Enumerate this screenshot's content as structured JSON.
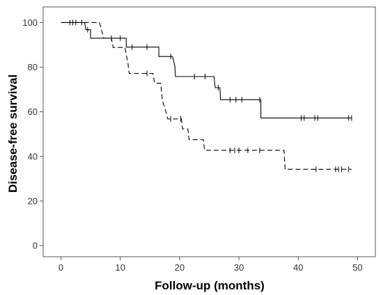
{
  "chart_data": {
    "type": "line",
    "step": true,
    "xlabel": "Follow-up (months)",
    "ylabel": "Disease-free survival",
    "xlim": [
      -3,
      53
    ],
    "ylim": [
      -5,
      107
    ],
    "xticks": [
      0,
      10,
      20,
      30,
      40,
      50
    ],
    "yticks": [
      0,
      20,
      40,
      60,
      80,
      100
    ],
    "grid": false,
    "legend": "none",
    "series": [
      {
        "line_style": "solid",
        "color": "#000000",
        "steps": [
          [
            0,
            100
          ],
          [
            4,
            100
          ],
          [
            4.2,
            96.8
          ],
          [
            5,
            96.8
          ],
          [
            5,
            93
          ],
          [
            11,
            93
          ],
          [
            11,
            89
          ],
          [
            16.5,
            89
          ],
          [
            16.5,
            84.8
          ],
          [
            18.8,
            84.8
          ],
          [
            19.2,
            80.5
          ],
          [
            19.3,
            75.8
          ],
          [
            25.8,
            75.8
          ],
          [
            26,
            70.8
          ],
          [
            26.8,
            70.8
          ],
          [
            26.9,
            65.4
          ],
          [
            33.7,
            65.4
          ],
          [
            33.7,
            57.2
          ],
          [
            49,
            57.2
          ]
        ],
        "censored": [
          [
            1.5,
            100
          ],
          [
            2,
            100
          ],
          [
            2.5,
            100
          ],
          [
            3.5,
            100
          ],
          [
            4.5,
            96.8
          ],
          [
            8.5,
            93
          ],
          [
            10,
            93
          ],
          [
            12,
            89
          ],
          [
            14.5,
            89
          ],
          [
            18.5,
            84.8
          ],
          [
            22.5,
            75.8
          ],
          [
            24.3,
            75.8
          ],
          [
            26.5,
            70.8
          ],
          [
            28.5,
            65.4
          ],
          [
            29.5,
            65.4
          ],
          [
            30.5,
            65.4
          ],
          [
            33.5,
            65.4
          ],
          [
            40.5,
            57.2
          ],
          [
            41,
            57.2
          ],
          [
            42.8,
            57.2
          ],
          [
            43.3,
            57.2
          ],
          [
            48.5,
            57.2
          ],
          [
            49,
            57.2
          ]
        ]
      },
      {
        "line_style": "dashed",
        "color": "#000000",
        "steps": [
          [
            0,
            100
          ],
          [
            6.5,
            100
          ],
          [
            7.2,
            93
          ],
          [
            8.5,
            93
          ],
          [
            8.8,
            88.8
          ],
          [
            10.8,
            88.8
          ],
          [
            11.3,
            81.6
          ],
          [
            11.5,
            77.2
          ],
          [
            15.5,
            77.2
          ],
          [
            15.8,
            72.8
          ],
          [
            16.8,
            72.8
          ],
          [
            17.1,
            65.1
          ],
          [
            17.6,
            60.8
          ],
          [
            18,
            56.8
          ],
          [
            20.3,
            56.8
          ],
          [
            20.5,
            52.3
          ],
          [
            21.4,
            52.3
          ],
          [
            21.6,
            47.5
          ],
          [
            24,
            47.5
          ],
          [
            24.2,
            42.7
          ],
          [
            37.6,
            42.7
          ],
          [
            37.8,
            34.2
          ],
          [
            49,
            34.2
          ]
        ],
        "censored": [
          [
            14.5,
            77.2
          ],
          [
            18.5,
            56.8
          ],
          [
            20.2,
            56.8
          ],
          [
            28.5,
            42.7
          ],
          [
            29.3,
            42.7
          ],
          [
            30,
            42.7
          ],
          [
            31.5,
            42.7
          ],
          [
            33.5,
            42.7
          ],
          [
            43,
            34.2
          ],
          [
            46.3,
            34.2
          ],
          [
            46.8,
            34.2
          ],
          [
            47.3,
            34.2
          ],
          [
            48.5,
            34.2
          ]
        ]
      }
    ]
  }
}
